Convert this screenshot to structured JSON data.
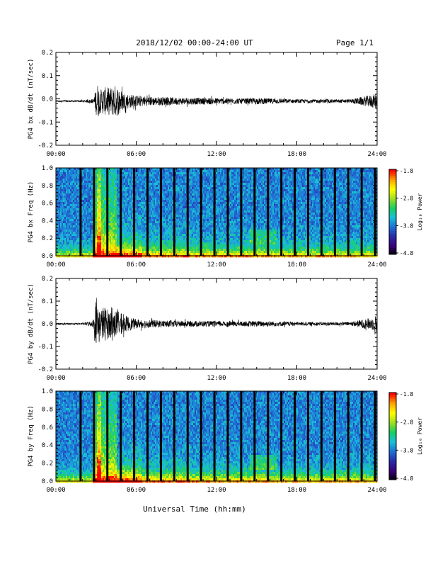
{
  "header": {
    "title": "2018/12/02  00:00-24:00 UT",
    "page": "Page 1/1"
  },
  "footer": {
    "xlabel": "Universal Time (hh:mm)"
  },
  "time_ticks": [
    "00:00",
    "06:00",
    "12:00",
    "18:00",
    "24:00"
  ],
  "colorbar": {
    "label": "Log₁₀ Power",
    "ticks": [
      "-1.8",
      "-2.8",
      "-3.8",
      "-4.8"
    ],
    "range": [
      -4.8,
      -1.8
    ],
    "colors": [
      "#000000",
      "#3a007a",
      "#2a2aa8",
      "#1f6fd6",
      "#19c0d8",
      "#17d060",
      "#9fe020",
      "#ffff00",
      "#ffa000",
      "#ff0000"
    ]
  },
  "chart_data": [
    {
      "type": "line",
      "ylabel": "PG4 bx dB/dt (nT/sec)",
      "xlim": [
        0,
        24
      ],
      "ylim": [
        -0.2,
        0.2
      ],
      "yticks": [
        "0.2",
        "0.1",
        "0.0",
        "-0.1",
        "-0.2"
      ],
      "baseline": -0.01,
      "envelope": {
        "t_hours": [
          0,
          2,
          2.8,
          3.1,
          3.3,
          3.6,
          4,
          4.5,
          5,
          5.5,
          6,
          7,
          8,
          9,
          10,
          12,
          14,
          15,
          16,
          17,
          18,
          20,
          22,
          23.8,
          24
        ],
        "amplitude": [
          0.004,
          0.004,
          0.01,
          0.08,
          0.05,
          0.06,
          0.06,
          0.07,
          0.04,
          0.03,
          0.025,
          0.02,
          0.018,
          0.016,
          0.015,
          0.014,
          0.012,
          0.014,
          0.012,
          0.01,
          0.008,
          0.008,
          0.008,
          0.03,
          0.04
        ]
      }
    },
    {
      "type": "heatmap",
      "ylabel": "PG4 bx Freq (Hz)",
      "xlim": [
        0,
        24
      ],
      "ylim": [
        0,
        1.0
      ],
      "yticks": [
        "1.0",
        "0.8",
        "0.6",
        "0.4",
        "0.2",
        "0.0"
      ],
      "data_gaps_hours": [
        1.0,
        2.0,
        3.0,
        4.0,
        5.0,
        6.0,
        7.0,
        8.0,
        9.0,
        10.0,
        11.0,
        12.0,
        13.0,
        14.0,
        15.0,
        16.0,
        17.0,
        18.0,
        19.0,
        20.0,
        21.0,
        22.0,
        23.0
      ]
    },
    {
      "type": "line",
      "ylabel": "PG4 by dB/dt (nT/sec)",
      "xlim": [
        0,
        24
      ],
      "ylim": [
        -0.2,
        0.2
      ],
      "yticks": [
        "0.2",
        "0.1",
        "0.0",
        "-0.1",
        "-0.2"
      ],
      "baseline": 0.0,
      "envelope": {
        "t_hours": [
          0,
          2,
          2.8,
          3.1,
          3.3,
          3.6,
          4,
          4.5,
          5,
          5.5,
          6,
          7,
          8,
          9,
          10,
          12,
          14,
          15,
          16,
          17,
          18,
          20,
          22,
          23.8,
          24
        ],
        "amplitude": [
          0.004,
          0.004,
          0.015,
          0.12,
          0.06,
          0.08,
          0.06,
          0.06,
          0.04,
          0.03,
          0.02,
          0.018,
          0.015,
          0.014,
          0.013,
          0.012,
          0.011,
          0.013,
          0.012,
          0.01,
          0.008,
          0.008,
          0.008,
          0.03,
          0.05
        ]
      }
    },
    {
      "type": "heatmap",
      "ylabel": "PG4 by Freq (Hz)",
      "xlim": [
        0,
        24
      ],
      "ylim": [
        0,
        1.0
      ],
      "yticks": [
        "1.0",
        "0.8",
        "0.6",
        "0.4",
        "0.2",
        "0.0"
      ],
      "data_gaps_hours": [
        1.0,
        2.0,
        3.0,
        4.0,
        5.0,
        6.0,
        7.0,
        8.0,
        9.0,
        10.0,
        11.0,
        12.0,
        13.0,
        14.0,
        15.0,
        16.0,
        17.0,
        18.0,
        19.0,
        20.0,
        21.0,
        22.0,
        23.0
      ]
    }
  ]
}
